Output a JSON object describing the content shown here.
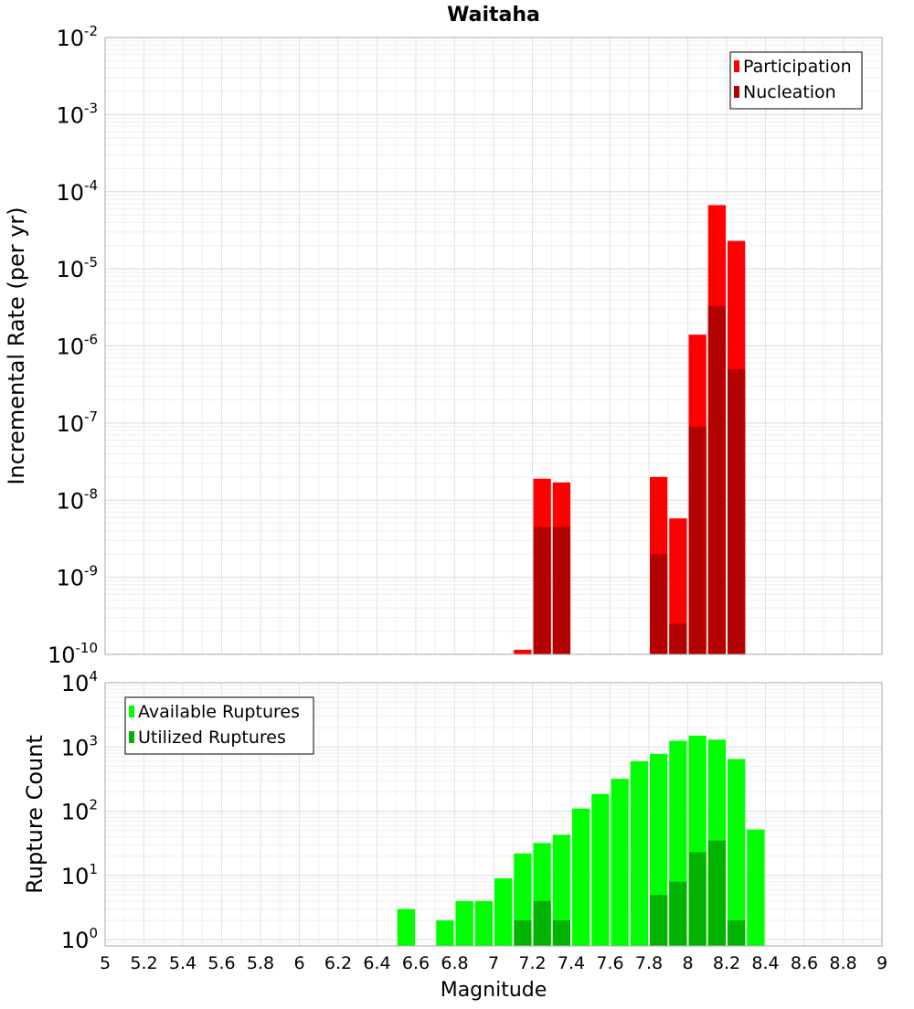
{
  "chart_data": [
    {
      "type": "bar",
      "title": "Waitaha",
      "ylabel": "Incremental Rate (per yr)",
      "y_scale": "log",
      "ylim": [
        1e-10,
        0.01
      ],
      "xlim": [
        5,
        9
      ],
      "bin_width": 0.1,
      "legend_position": "top-right",
      "grid": true,
      "y_ticks": [
        {
          "base": "10",
          "exp": "-2"
        },
        {
          "base": "10",
          "exp": "-3"
        },
        {
          "base": "10",
          "exp": "-4"
        },
        {
          "base": "10",
          "exp": "-5"
        },
        {
          "base": "10",
          "exp": "-6"
        },
        {
          "base": "10",
          "exp": "-7"
        },
        {
          "base": "10",
          "exp": "-8"
        },
        {
          "base": "10",
          "exp": "-9"
        },
        {
          "base": "10",
          "exp": "-10"
        }
      ],
      "series": [
        {
          "name": "Participation",
          "color": "#ff0000",
          "points": [
            [
              7.15,
              1.15e-10
            ],
            [
              7.25,
              1.9e-08
            ],
            [
              7.35,
              1.7e-08
            ],
            [
              7.85,
              2e-08
            ],
            [
              7.95,
              5.8e-09
            ],
            [
              8.05,
              1.4e-06
            ],
            [
              8.15,
              6.7e-05
            ],
            [
              8.25,
              2.3e-05
            ]
          ]
        },
        {
          "name": "Nucleation",
          "color": "#b30000",
          "points": [
            [
              7.25,
              4.5e-09
            ],
            [
              7.35,
              4.5e-09
            ],
            [
              7.85,
              2e-09
            ],
            [
              7.95,
              2.5e-10
            ],
            [
              8.05,
              9e-08
            ],
            [
              8.15,
              3.3e-06
            ],
            [
              8.25,
              5e-07
            ]
          ]
        }
      ]
    },
    {
      "type": "bar",
      "title": "",
      "xlabel": "Magnitude",
      "ylabel": "Rupture Count",
      "y_scale": "log",
      "ylim": [
        0.8,
        10000
      ],
      "xlim": [
        5,
        9
      ],
      "bin_width": 0.1,
      "legend_position": "top-left",
      "grid": true,
      "x_ticks": [
        "5",
        "5.2",
        "5.4",
        "5.6",
        "5.8",
        "6",
        "6.2",
        "6.4",
        "6.6",
        "6.8",
        "7",
        "7.2",
        "7.4",
        "7.6",
        "7.8",
        "8",
        "8.2",
        "8.4",
        "8.6",
        "8.8",
        "9"
      ],
      "y_ticks": [
        {
          "base": "10",
          "exp": "4"
        },
        {
          "base": "10",
          "exp": "3"
        },
        {
          "base": "10",
          "exp": "2"
        },
        {
          "base": "10",
          "exp": "1"
        },
        {
          "base": "10",
          "exp": "0"
        }
      ],
      "series": [
        {
          "name": "Available Ruptures",
          "color": "#00ff00",
          "points": [
            [
              6.55,
              3
            ],
            [
              6.75,
              2
            ],
            [
              6.85,
              4
            ],
            [
              6.95,
              4
            ],
            [
              7.05,
              9
            ],
            [
              7.15,
              22
            ],
            [
              7.25,
              32
            ],
            [
              7.35,
              43
            ],
            [
              7.45,
              110
            ],
            [
              7.55,
              185
            ],
            [
              7.65,
              320
            ],
            [
              7.75,
              600
            ],
            [
              7.85,
              780
            ],
            [
              7.95,
              1250
            ],
            [
              8.05,
              1500
            ],
            [
              8.15,
              1300
            ],
            [
              8.25,
              650
            ],
            [
              8.35,
              52
            ]
          ]
        },
        {
          "name": "Utilized Ruptures",
          "color": "#00b300",
          "points": [
            [
              7.15,
              2
            ],
            [
              7.25,
              4
            ],
            [
              7.35,
              2
            ],
            [
              7.85,
              5
            ],
            [
              7.95,
              8
            ],
            [
              8.05,
              23
            ],
            [
              8.15,
              35
            ],
            [
              8.25,
              2
            ]
          ]
        }
      ]
    }
  ]
}
